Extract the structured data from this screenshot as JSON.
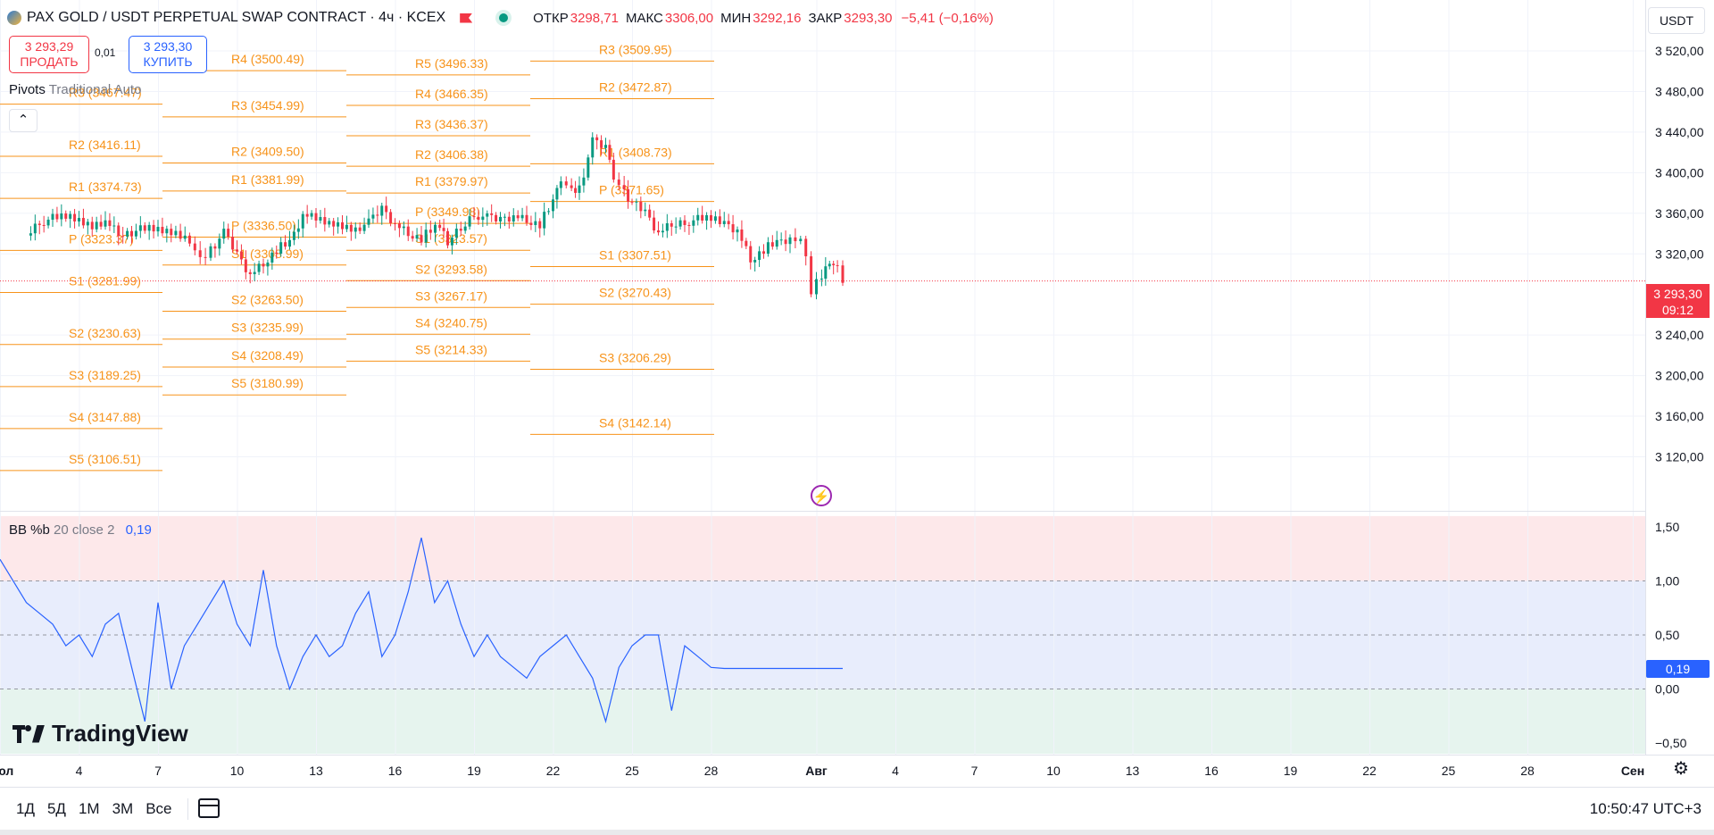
{
  "header": {
    "symbol_title": "PAX GOLD / USDT PERPETUAL SWAP CONTRACT · 4ч · KCEX",
    "open_label": "ОТКР",
    "open_value": "3298,71",
    "high_label": "МАКС",
    "high_value": "3306,00",
    "low_label": "МИН",
    "low_value": "3292,16",
    "close_label": "ЗАКР",
    "close_value": "3293,30",
    "change": "−5,41 (−0,16%)",
    "currency": "USDT"
  },
  "trade": {
    "sell_price": "3 293,29",
    "sell_label": "ПРОДАТЬ",
    "spread": "0,01",
    "buy_price": "3 293,30",
    "buy_label": "КУПИТЬ"
  },
  "indicators": {
    "pivots_name": "Pivots",
    "pivots_params": "Traditional Auto",
    "bb_name": "BB %b",
    "bb_params": "20 close 2",
    "bb_value": "0,19"
  },
  "price_marker": {
    "price": "3 293,30",
    "countdown": "09:12"
  },
  "bb_marker": "0,19",
  "branding": "TradingView",
  "toolbar": {
    "periods": [
      "1Д",
      "5Д",
      "1М",
      "3М",
      "Все"
    ],
    "clock": "10:50:47 UTC+3"
  },
  "colors": {
    "up": "#089981",
    "down": "#f23645",
    "pivot": "#f7931a",
    "bb_line": "#2962ff"
  },
  "chart_data": [
    {
      "type": "candlestick",
      "timeframe": "4h",
      "current_price": 3293.3,
      "ylim": [
        3100,
        3540
      ],
      "y_ticks": [
        "3 520,00",
        "3 480,00",
        "3 440,00",
        "3 400,00",
        "3 360,00",
        "3 320,00",
        "3 240,00",
        "3 200,00",
        "3 160,00",
        "3 120,00"
      ],
      "y_tick_values": [
        3520,
        3480,
        3440,
        3400,
        3360,
        3320,
        3240,
        3200,
        3160,
        3120
      ],
      "x_ticks": [
        "Июл",
        "4",
        "7",
        "10",
        "13",
        "16",
        "19",
        "22",
        "25",
        "28",
        "Авг",
        "4",
        "7",
        "10",
        "13",
        "16",
        "19",
        "22",
        "25",
        "28",
        "Сен"
      ],
      "ohlc_path": [
        [
          1,
          3338
        ],
        [
          1.5,
          3352
        ],
        [
          2.5,
          3357
        ],
        [
          3.5,
          3349
        ],
        [
          4,
          3353
        ],
        [
          4.5,
          3340
        ],
        [
          5.5,
          3344
        ],
        [
          6.5,
          3342
        ],
        [
          7.2,
          3335
        ],
        [
          7.6,
          3312
        ],
        [
          8,
          3325
        ],
        [
          8.5,
          3340
        ],
        [
          9,
          3320
        ],
        [
          9.5,
          3300
        ],
        [
          10,
          3310
        ],
        [
          10.5,
          3325
        ],
        [
          11,
          3330
        ],
        [
          11.5,
          3358
        ],
        [
          12.5,
          3350
        ],
        [
          13.5,
          3346
        ],
        [
          14,
          3350
        ],
        [
          14.5,
          3365
        ],
        [
          15,
          3350
        ],
        [
          15.5,
          3340
        ],
        [
          16,
          3336
        ],
        [
          16.7,
          3348
        ],
        [
          17,
          3332
        ],
        [
          17.5,
          3344
        ],
        [
          18,
          3360
        ],
        [
          18.5,
          3355
        ],
        [
          19,
          3354
        ],
        [
          19.5,
          3358
        ],
        [
          20,
          3353
        ],
        [
          20.5,
          3350
        ],
        [
          21,
          3370
        ],
        [
          21.3,
          3395
        ],
        [
          21.7,
          3380
        ],
        [
          22,
          3385
        ],
        [
          22.5,
          3430
        ],
        [
          23,
          3425
        ],
        [
          23.3,
          3398
        ],
        [
          23.7,
          3380
        ],
        [
          24,
          3370
        ],
        [
          24.5,
          3360
        ],
        [
          25,
          3340
        ],
        [
          25.5,
          3348
        ],
        [
          26,
          3352
        ],
        [
          27,
          3355
        ],
        [
          27.5,
          3350
        ],
        [
          28,
          3344
        ],
        [
          28.5,
          3314
        ],
        [
          29,
          3325
        ],
        [
          29.5,
          3330
        ],
        [
          30,
          3335
        ],
        [
          30.4,
          3330
        ],
        [
          30.6,
          3320
        ],
        [
          30.8,
          3285
        ],
        [
          31.2,
          3298
        ],
        [
          31.5,
          3315
        ],
        [
          31.8,
          3305
        ],
        [
          32,
          3295
        ]
      ],
      "pivot_points": [
        {
          "period": 1,
          "R3": "3467.47",
          "R2": "3416.11",
          "R1": "3374.73",
          "P": "3323.37",
          "S1": "3281.99",
          "S2": "3230.63",
          "S3": "3189.25",
          "S4": "3147.88",
          "S5": "3106.51"
        },
        {
          "period": 2,
          "R4": "3500.49",
          "R3": "3454.99",
          "R2": "3409.50",
          "R1": "3381.99",
          "P": "3336.50",
          "S1": "3308.99",
          "S2": "3263.50",
          "S3": "3235.99",
          "S4": "3208.49",
          "S5": "3180.99"
        },
        {
          "period": 3,
          "R5": "3496.33",
          "R4": "3466.35",
          "R3": "3436.37",
          "R2": "3406.38",
          "R1": "3379.97",
          "P": "3349.98",
          "S1": "3323.57",
          "S2": "3293.58",
          "S3": "3267.17",
          "S4": "3240.75",
          "S5": "3214.33"
        },
        {
          "period": 4,
          "R3": "3509.95",
          "R2": "3472.87",
          "R1": "3408.73",
          "P": "3371.65",
          "S1": "3307.51",
          "S2": "3270.43",
          "S3": "3206.29",
          "S4": "3142.14"
        }
      ]
    },
    {
      "type": "line",
      "name": "BB %b",
      "ylim": [
        -0.6,
        1.6
      ],
      "y_ticks": [
        "1,50",
        "1,00",
        "0,50",
        "0,00",
        "−0,50"
      ],
      "y_tick_values": [
        1.5,
        1.0,
        0.5,
        0.0,
        -0.5
      ],
      "bands": {
        "upper": 1.0,
        "mid": 0.5,
        "lower": 0.0
      },
      "series": [
        {
          "x": [
            0,
            1,
            1.5,
            2,
            2.5,
            3,
            3.5,
            4,
            4.5,
            5,
            5.5,
            6,
            6.5,
            7,
            7.5,
            8,
            8.5,
            9,
            9.5,
            10,
            10.5,
            11,
            11.5,
            12,
            12.5,
            13,
            13.5,
            14,
            14.5,
            15,
            15.5,
            16,
            16.5,
            17,
            17.5,
            18,
            18.5,
            19,
            19.5,
            20,
            20.5,
            21,
            21.5,
            22,
            22.5,
            23,
            23.5,
            24,
            24.5,
            25,
            25.5,
            26,
            26.5,
            27,
            27.5,
            28,
            28.5,
            29,
            29.5,
            30,
            30.5,
            31,
            31.5,
            32
          ],
          "values": [
            1.2,
            0.8,
            0.7,
            0.6,
            0.4,
            0.5,
            0.3,
            0.6,
            0.7,
            0.2,
            -0.3,
            0.8,
            0.0,
            0.4,
            0.6,
            0.8,
            1.0,
            0.6,
            0.4,
            1.1,
            0.4,
            0.0,
            0.3,
            0.5,
            0.3,
            0.4,
            0.7,
            0.9,
            0.3,
            0.5,
            0.9,
            1.4,
            0.8,
            1.0,
            0.6,
            0.3,
            0.5,
            0.3,
            0.2,
            0.1,
            0.3,
            0.4,
            0.5,
            0.3,
            0.1,
            -0.3,
            0.2,
            0.4,
            0.5,
            0.5,
            -0.2,
            0.4,
            0.3,
            0.2,
            0.19,
            0.19,
            0.19,
            0.19,
            0.19,
            0.19,
            0.19,
            0.19,
            0.19,
            0.19
          ]
        }
      ]
    }
  ]
}
